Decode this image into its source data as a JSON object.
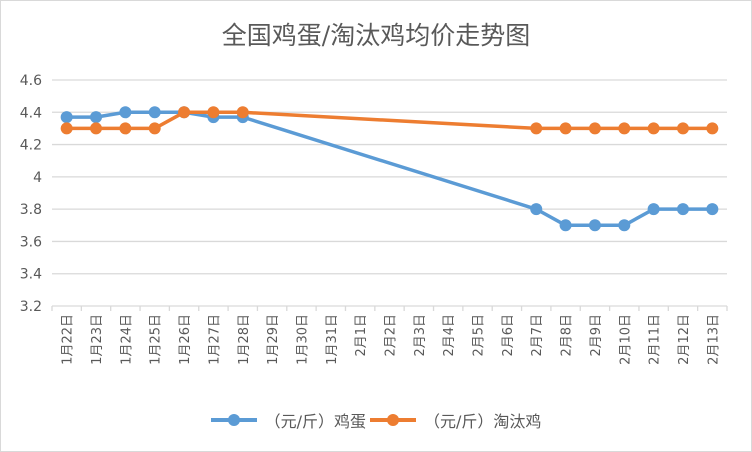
{
  "chart_data": {
    "type": "line",
    "title": "全国鸡蛋/淘汰鸡均价走势图",
    "xlabel": "",
    "ylabel": "",
    "ylim": [
      3.2,
      4.6
    ],
    "yticks": [
      3.2,
      3.4,
      3.6,
      3.8,
      4,
      4.2,
      4.4,
      4.6
    ],
    "ytick_labels": [
      "3.2",
      "3.4",
      "3.6",
      "3.8",
      "4",
      "4.2",
      "4.4",
      "4.6"
    ],
    "grid": true,
    "legend_position": "bottom",
    "categories": [
      "1月22日",
      "1月23日",
      "1月24日",
      "1月25日",
      "1月26日",
      "1月27日",
      "1月28日",
      "1月29日",
      "1月30日",
      "1月31日",
      "2月1日",
      "2月2日",
      "2月3日",
      "2月4日",
      "2月5日",
      "2月6日",
      "2月7日",
      "2月8日",
      "2月9日",
      "2月10日",
      "2月11日",
      "2月12日",
      "2月13日"
    ],
    "series": [
      {
        "name": "（元/斤）鸡蛋",
        "color": "#5b9bd5",
        "values": [
          4.37,
          4.37,
          4.4,
          4.4,
          4.4,
          4.37,
          4.37,
          null,
          null,
          null,
          null,
          null,
          null,
          null,
          null,
          null,
          3.8,
          3.7,
          3.7,
          3.7,
          3.8,
          3.8,
          3.8
        ]
      },
      {
        "name": "（元/斤）淘汰鸡",
        "color": "#ed7d31",
        "values": [
          4.3,
          4.3,
          4.3,
          4.3,
          4.4,
          4.4,
          4.4,
          null,
          null,
          null,
          null,
          null,
          null,
          null,
          null,
          null,
          4.3,
          4.3,
          4.3,
          4.3,
          4.3,
          4.3,
          4.3
        ]
      }
    ]
  }
}
